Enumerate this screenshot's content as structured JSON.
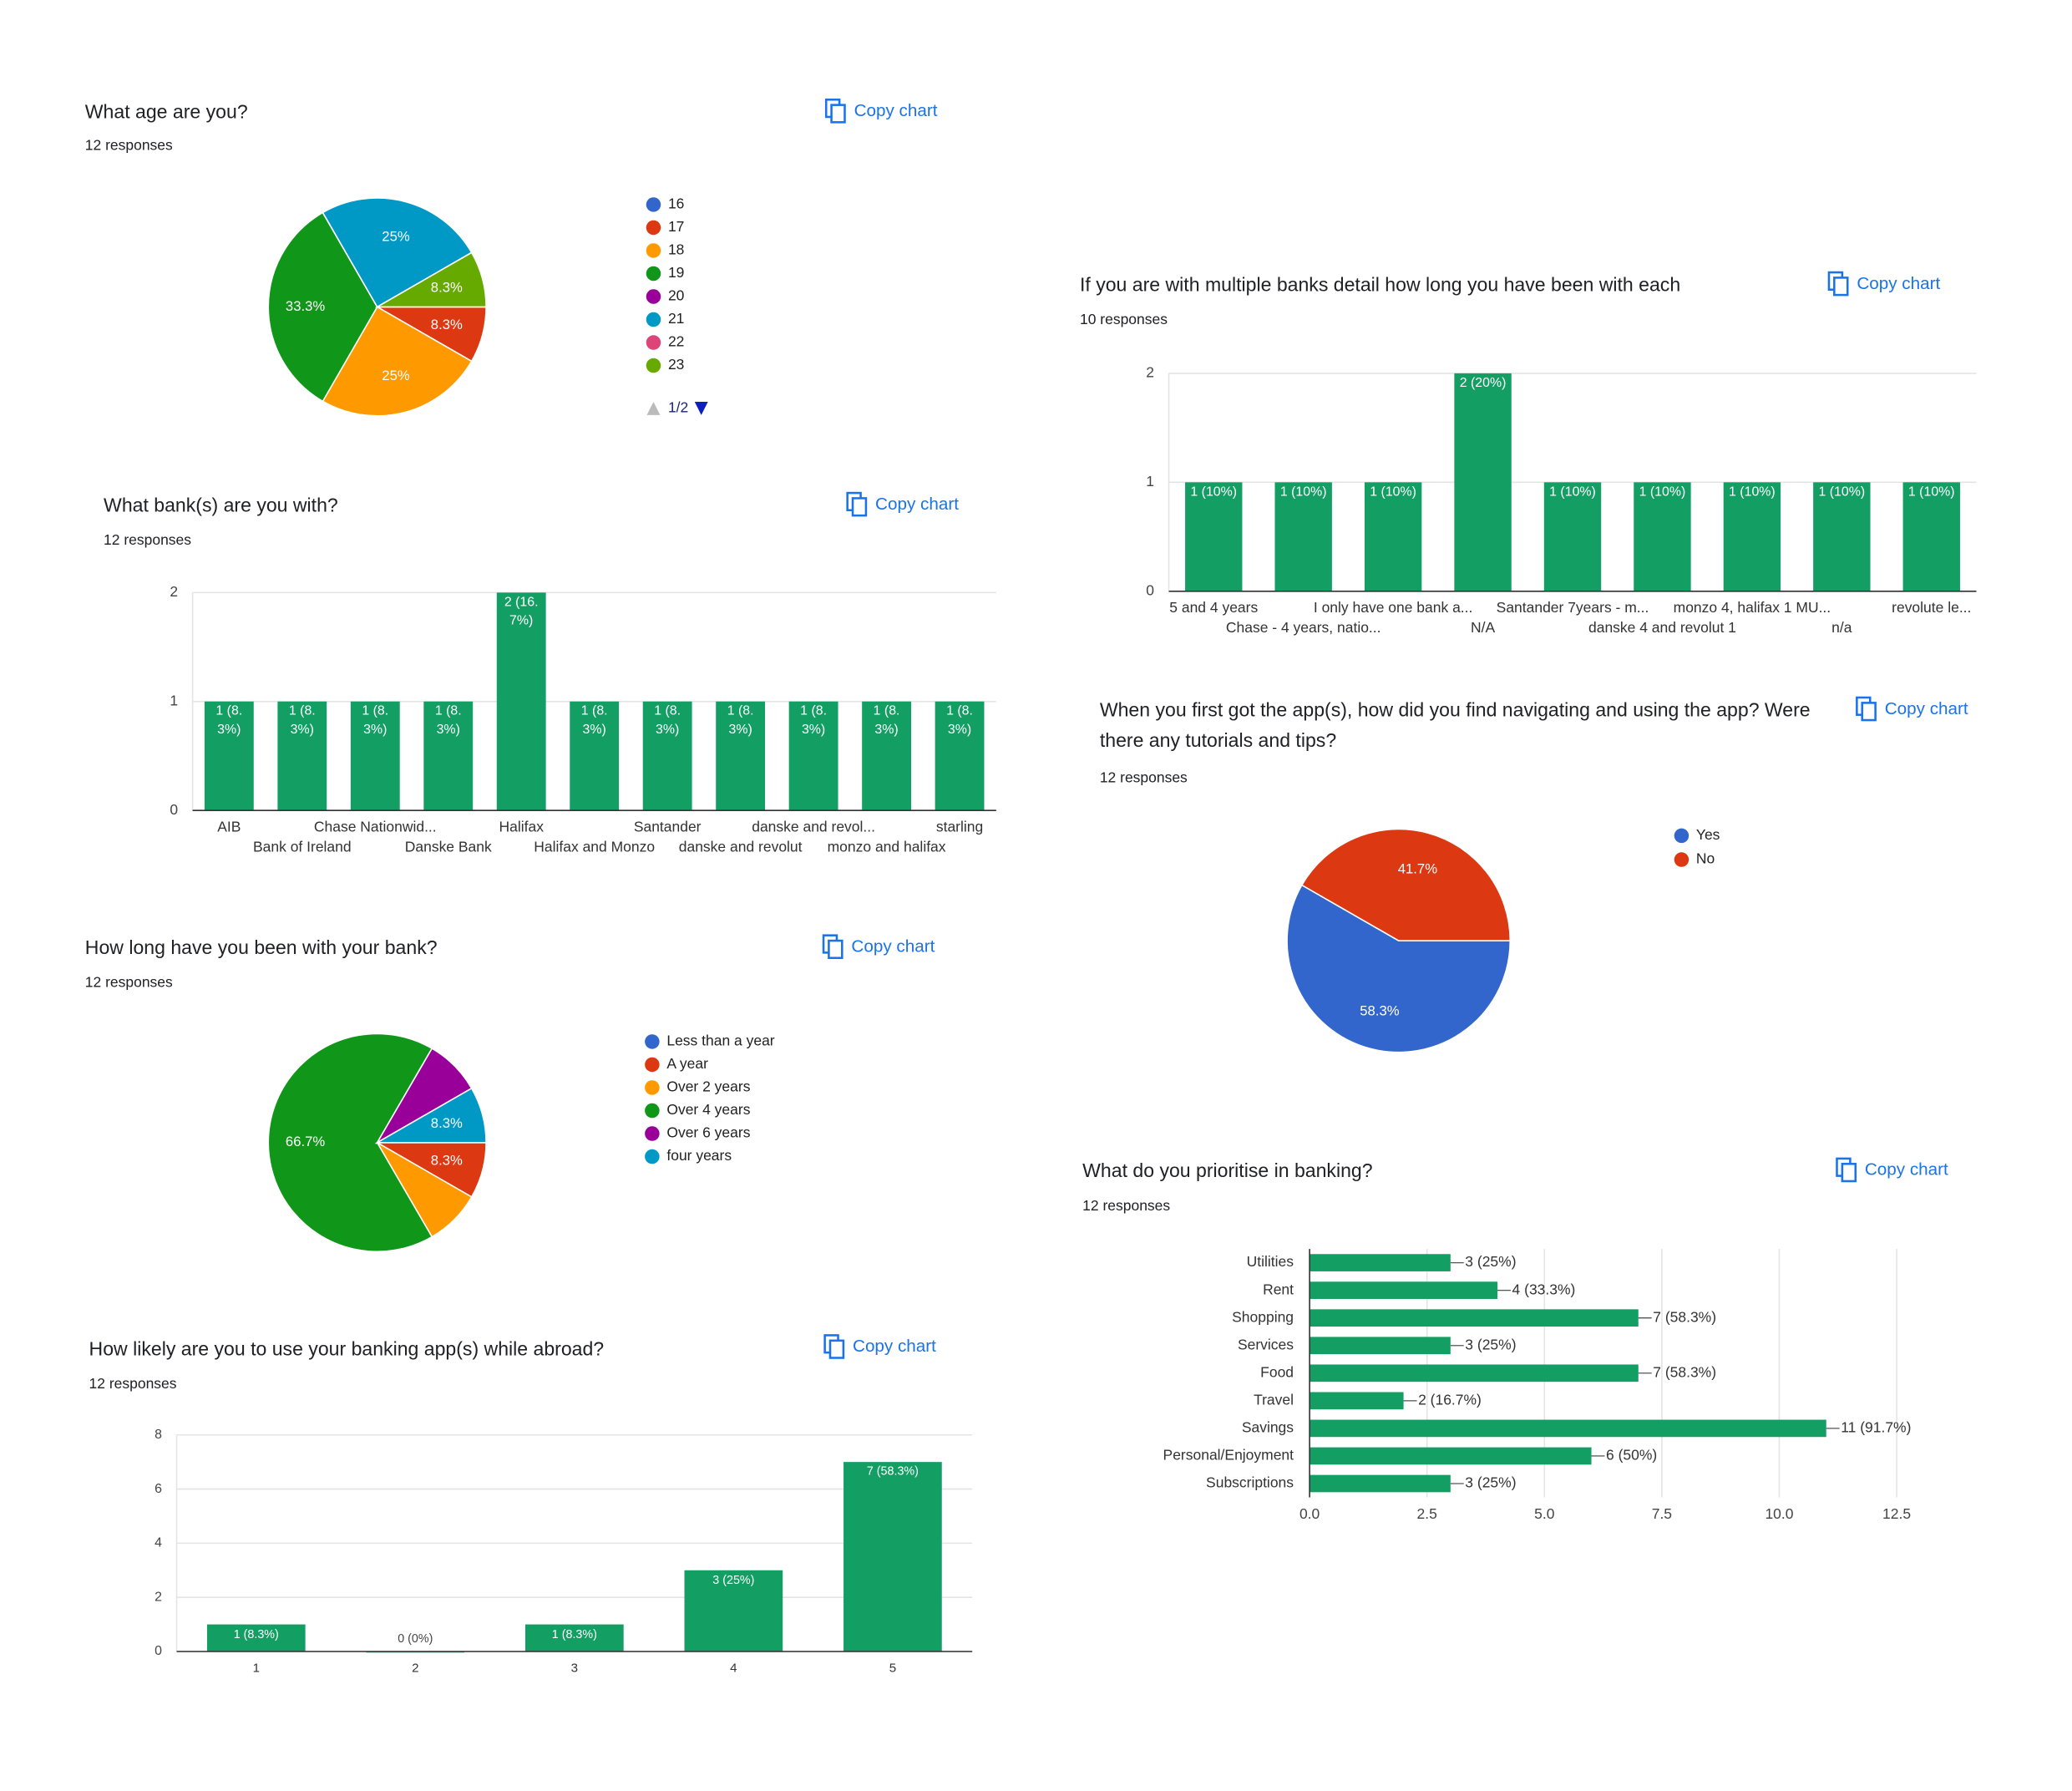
{
  "chart_data": [
    {
      "type": "pie",
      "title": "What age are you?",
      "subtitle": "12 responses",
      "button": "Copy chart",
      "categories": [
        "16",
        "17",
        "18",
        "19",
        "20",
        "21",
        "22",
        "23"
      ],
      "values": [
        0,
        8.3,
        25,
        33.3,
        0,
        25,
        0,
        8.3
      ],
      "value_labels": [
        null,
        "8.3%",
        "25%",
        "33.3%",
        null,
        "25%",
        null,
        "8.3%"
      ],
      "colors": [
        "#3366cc",
        "#dc3912",
        "#ff9900",
        "#109618",
        "#990099",
        "#0099c6",
        "#dd4477",
        "#66aa00"
      ],
      "legend_page": "1/2"
    },
    {
      "type": "bar",
      "title": "What bank(s) are you with?",
      "subtitle": "12 responses",
      "button": "Copy chart",
      "categories": [
        "AIB",
        "Bank of Ireland",
        "Chase Nationwid...",
        "Danske Bank",
        "Halifax",
        "Halifax and Monzo",
        "Santander",
        "danske and revolut",
        "danske and revol...",
        "monzo and halifax",
        "starling"
      ],
      "values": [
        1,
        1,
        1,
        1,
        2,
        1,
        1,
        1,
        1,
        1,
        1
      ],
      "value_labels": [
        "1 (8.3%)",
        "1 (8.3%)",
        "1 (8.3%)",
        "1 (8.3%)",
        "2 (16.7%)",
        "1 (8.3%)",
        "1 (8.3%)",
        "1 (8.3%)",
        "1 (8.3%)",
        "1 (8.3%)",
        "1 (8.3%)"
      ],
      "color": "#139e64",
      "ylim": [
        0,
        2
      ],
      "yticks": [
        0,
        1,
        2
      ],
      "grid": true
    },
    {
      "type": "pie",
      "title": "How long have you been with your bank?",
      "subtitle": "12 responses",
      "button": "Copy chart",
      "categories": [
        "Less than a year",
        "A year",
        "Over 2 years",
        "Over 4 years",
        "Over 6 years",
        "four years"
      ],
      "values": [
        0,
        8.3,
        8.3,
        66.7,
        8.3,
        8.3
      ],
      "value_labels": [
        null,
        "8.3%",
        null,
        "66.7%",
        null,
        "8.3%"
      ],
      "colors": [
        "#3366cc",
        "#dc3912",
        "#ff9900",
        "#109618",
        "#990099",
        "#0099c6"
      ]
    },
    {
      "type": "bar",
      "title": "How likely are you to use your banking app(s) while abroad?",
      "subtitle": "12 responses",
      "button": "Copy chart",
      "categories": [
        "1",
        "2",
        "3",
        "4",
        "5"
      ],
      "values": [
        1,
        0,
        1,
        3,
        7
      ],
      "value_labels": [
        "1 (8.3%)",
        "0 (0%)",
        "1 (8.3%)",
        "3 (25%)",
        "7 (58.3%)"
      ],
      "color": "#139e64",
      "ylim": [
        0,
        8
      ],
      "yticks": [
        0,
        2,
        4,
        6,
        8
      ],
      "grid": true
    },
    {
      "type": "bar",
      "title": "If you are with multiple banks detail how long you have been with each",
      "subtitle": "10 responses",
      "button": "Copy chart",
      "categories": [
        "5 and 4 years",
        "Chase - 4 years, natio...",
        "I only have one bank a...",
        "N/A",
        "Santander 7years - m...",
        "danske 4 and revolut 1",
        "monzo 4, halifax 1 MU...",
        "n/a",
        "revolute le..."
      ],
      "values": [
        1,
        1,
        1,
        2,
        1,
        1,
        1,
        1,
        1
      ],
      "value_labels": [
        "1 (10%)",
        "1 (10%)",
        "1 (10%)",
        "2 (20%)",
        "1 (10%)",
        "1 (10%)",
        "1 (10%)",
        "1 (10%)",
        "1 (10%)"
      ],
      "color": "#139e64",
      "ylim": [
        0,
        2
      ],
      "yticks": [
        0,
        1,
        2
      ],
      "grid": true
    },
    {
      "type": "pie",
      "title": "When you first got the app(s), how did you find navigating and using the app? Were there any tutorials and tips?",
      "subtitle": "12 responses",
      "button": "Copy chart",
      "categories": [
        "Yes",
        "No"
      ],
      "values": [
        58.3,
        41.7
      ],
      "value_labels": [
        "58.3%",
        "41.7%"
      ],
      "colors": [
        "#3366cc",
        "#dc3912"
      ]
    },
    {
      "type": "bar",
      "orientation": "horizontal",
      "title": "What do you prioritise in banking?",
      "subtitle": "12 responses",
      "button": "Copy chart",
      "categories": [
        "Utilities",
        "Rent",
        "Shopping",
        "Services",
        "Food",
        "Travel",
        "Savings",
        "Personal/Enjoyment",
        "Subscriptions"
      ],
      "values": [
        3,
        4,
        7,
        3,
        7,
        2,
        11,
        6,
        3
      ],
      "value_labels": [
        "3 (25%)",
        "4 (33.3%)",
        "7 (58.3%)",
        "3 (25%)",
        "7 (58.3%)",
        "2 (16.7%)",
        "11 (91.7%)",
        "6 (50%)",
        "3 (25%)"
      ],
      "color": "#139e64",
      "xlim": [
        0,
        12.5
      ],
      "xticks": [
        {
          "value": 0,
          "label": "0.0"
        },
        2.5,
        {
          "value": 5,
          "label": "5.0"
        },
        7.5,
        {
          "value": 10,
          "label": "10.0"
        },
        12.5
      ],
      "grid": true
    }
  ]
}
